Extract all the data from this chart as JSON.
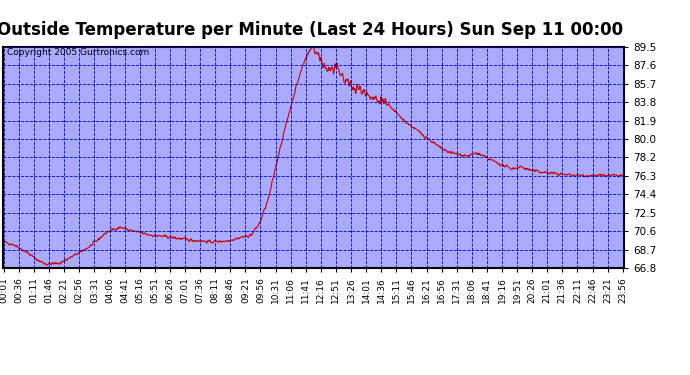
{
  "title": "Outside Temperature per Minute (Last 24 Hours) Sun Sep 11 00:00",
  "copyright": "Copyright 2005 Gurtronics.com",
  "outer_bg_color": "#ffffff",
  "plot_bg_color": "#aaaaff",
  "line_color": "#cc0000",
  "grid_color": "#0000cc",
  "text_color": "#000000",
  "border_color": "#000000",
  "ylim": [
    66.8,
    89.5
  ],
  "yticks": [
    66.8,
    68.7,
    70.6,
    72.5,
    74.4,
    76.3,
    78.2,
    80.0,
    81.9,
    83.8,
    85.7,
    87.6,
    89.5
  ],
  "xtick_labels": [
    "00:01",
    "00:36",
    "01:11",
    "01:46",
    "02:21",
    "02:56",
    "03:31",
    "04:06",
    "04:41",
    "05:16",
    "05:51",
    "06:26",
    "07:01",
    "07:36",
    "08:11",
    "08:46",
    "09:21",
    "09:56",
    "10:31",
    "11:06",
    "11:41",
    "12:16",
    "12:51",
    "13:26",
    "14:01",
    "14:36",
    "15:11",
    "15:46",
    "16:21",
    "16:56",
    "17:31",
    "18:06",
    "18:41",
    "19:16",
    "19:51",
    "20:26",
    "21:01",
    "21:36",
    "22:11",
    "22:46",
    "23:21",
    "23:56"
  ],
  "title_fontsize": 12,
  "copyright_fontsize": 6.5,
  "tick_fontsize": 6.5,
  "ytick_fontsize": 7.5
}
